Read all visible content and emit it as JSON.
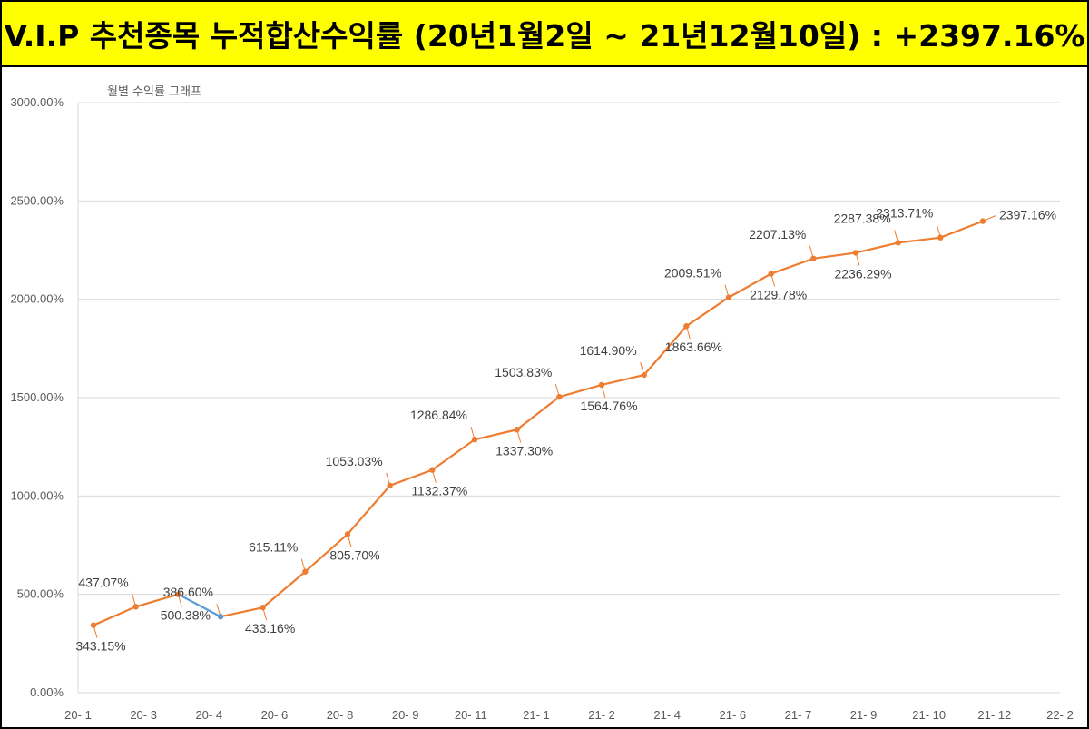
{
  "header": {
    "title": "V.I.P 추천종목 누적합산수익률 (20년1월2일 ~ 21년12월10일) : +2397.16%",
    "background_color": "#ffff00"
  },
  "chart_data": {
    "type": "line",
    "title": "월별 수익률 그래프",
    "xlabel": "",
    "ylabel": "",
    "grid": true,
    "legend": "none",
    "ylim": [
      0,
      3000
    ],
    "yticks": [
      "0.00%",
      "500.00%",
      "1000.00%",
      "1500.00%",
      "2000.00%",
      "2500.00%",
      "3000.00%"
    ],
    "ytick_values": [
      0,
      500,
      1000,
      1500,
      2000,
      2500,
      3000
    ],
    "xticks": [
      "20- 1",
      "20- 3",
      "20- 4",
      "20- 6",
      "20- 8",
      "20- 9",
      "20- 11",
      "21- 1",
      "21- 2",
      "21- 4",
      "21- 6",
      "21- 7",
      "21- 9",
      "21- 10",
      "21- 12",
      "22- 2"
    ],
    "line_color": "#ed7d31",
    "decline_color": "#5b9bd5",
    "series": [
      {
        "values": [
          343.15,
          437.07,
          500.38,
          386.6,
          433.16,
          615.11,
          805.7,
          1053.03,
          1132.37,
          1286.84,
          1337.3,
          1503.83,
          1564.76,
          1614.9,
          1863.66,
          2009.51,
          2129.78,
          2207.13,
          2236.29,
          2287.38,
          2313.71,
          2397.16
        ],
        "labels": [
          "343.15%",
          "437.07%",
          "500.38%",
          "386.60%",
          "433.16%",
          "615.11%",
          "805.70%",
          "1053.03%",
          "1132.37%",
          "1286.84%",
          "1337.30%",
          "1503.83%",
          "1564.76%",
          "1614.90%",
          "1863.66%",
          "2009.51%",
          "2129.78%",
          "2207.13%",
          "2236.29%",
          "2287.38%",
          "2313.71%",
          "2397.16%"
        ]
      }
    ]
  }
}
